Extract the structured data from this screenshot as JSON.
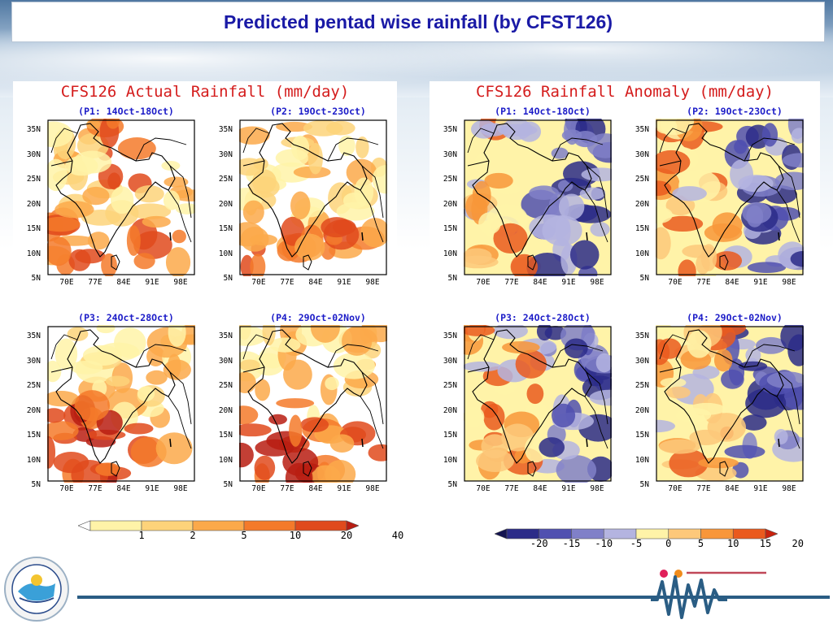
{
  "slide": {
    "title": "Predicted pentad wise rainfall (by CFST126)"
  },
  "left_panel": {
    "title": "CFS126 Actual Rainfall (mm/day)",
    "maps": [
      {
        "label": "(P1: 14Oct-18Oct)"
      },
      {
        "label": "(P2: 19Oct-23Oct)"
      },
      {
        "label": "(P3: 24Oct-28Oct)"
      },
      {
        "label": "(P4: 29Oct-02Nov)"
      }
    ],
    "colorbar": {
      "labels": [
        "1",
        "2",
        "5",
        "10",
        "20",
        "40"
      ],
      "colors": [
        "#ffffff",
        "#fff3a8",
        "#fdd37a",
        "#fba94a",
        "#f47a2a",
        "#e04a1c",
        "#b81d12"
      ]
    }
  },
  "right_panel": {
    "title": "CFS126 Rainfall Anomaly (mm/day)",
    "maps": [
      {
        "label": "(P1: 14Oct-18Oct)"
      },
      {
        "label": "(P2: 19Oct-23Oct)"
      },
      {
        "label": "(P3: 24Oct-28Oct)"
      },
      {
        "label": "(P4: 29Oct-02Nov)"
      }
    ],
    "colorbar": {
      "labels": [
        "-20",
        "-15",
        "-10",
        "-5",
        "0",
        "5",
        "10",
        "15",
        "20"
      ],
      "colors": [
        "#141450",
        "#2c2c88",
        "#5050b0",
        "#8080c8",
        "#b4b4e0",
        "#fff3a8",
        "#fdc87a",
        "#f8963a",
        "#ea5a1e",
        "#c8220e"
      ]
    }
  },
  "axes": {
    "y_ticks": [
      "35N",
      "30N",
      "25N",
      "20N",
      "15N",
      "10N",
      "5N"
    ],
    "x_ticks": [
      "70E",
      "77E",
      "84E",
      "91E",
      "98E"
    ]
  },
  "icons": {
    "left_logo": "institute-seal-icon",
    "right_logo": "seismic-wave-logo-icon"
  }
}
